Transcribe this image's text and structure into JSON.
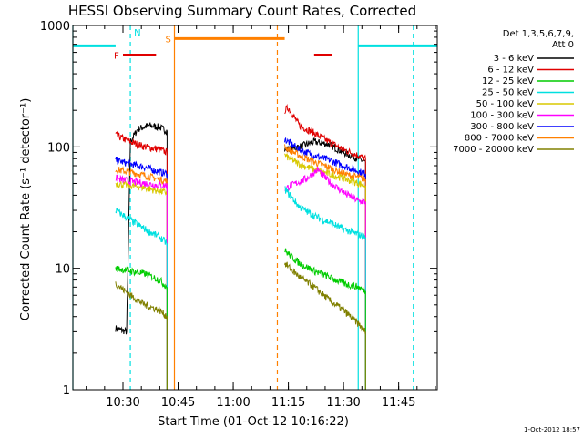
{
  "chart_data": {
    "type": "line",
    "title": "HESSI Observing Summary Count Rates, Corrected",
    "xlabel": "Start Time (01-Oct-12 10:16:22)",
    "ylabel": "Corrected Count Rate (s⁻¹ detector⁻¹)",
    "y_scale": "log",
    "ylim": [
      1,
      1000
    ],
    "xlim": [
      "10:16:22",
      "11:55:30"
    ],
    "x_ticks": [
      "10:30",
      "10:45",
      "11:00",
      "11:15",
      "11:30",
      "11:45"
    ],
    "y_ticks": [
      "1",
      "10",
      "100",
      "1000"
    ],
    "footer": "1-Oct-2012 18:57",
    "legend": {
      "placement": "right",
      "header": [
        "Det 1,3,5,6,7,9,",
        "Att 0"
      ],
      "entries": [
        {
          "label": "3 - 6 keV",
          "color": "#000000"
        },
        {
          "label": "6 - 12 keV",
          "color": "#e00000"
        },
        {
          "label": "12 - 25 keV",
          "color": "#00cc00"
        },
        {
          "label": "25 - 50 keV",
          "color": "#00e0e0"
        },
        {
          "label": "50 - 100 keV",
          "color": "#d8c800"
        },
        {
          "label": "100 - 300 keV",
          "color": "#ff00ff"
        },
        {
          "label": "300 - 800 keV",
          "color": "#0000ff"
        },
        {
          "label": "800 - 7000 keV",
          "color": "#ff8000"
        },
        {
          "label": "7000 - 20000 keV",
          "color": "#808000"
        }
      ]
    },
    "flag_bars": [
      {
        "label": "",
        "color": "#00e0e0",
        "start": "10:16:22",
        "end": "10:28",
        "y": 680
      },
      {
        "label": "",
        "color": "#00e0e0",
        "start": "11:34",
        "end": "11:55:30",
        "y": 680
      },
      {
        "label": "S",
        "color": "#ff8000",
        "start": "10:44",
        "end": "11:14",
        "y": 780
      },
      {
        "label": "F",
        "color": "#e00000",
        "start": "10:30",
        "end": "10:39",
        "y": 570
      },
      {
        "label": "",
        "color": "#e00000",
        "start": "11:22",
        "end": "11:27",
        "y": 570
      },
      {
        "label": "N",
        "color": "#00e0e0",
        "label_time": "10:33",
        "label_y": 830
      }
    ],
    "vertical_lines": [
      {
        "time": "10:16:22",
        "color": "#00e0e0",
        "style": "solid"
      },
      {
        "time": "10:32",
        "color": "#00e0e0",
        "style": "dashed"
      },
      {
        "time": "10:44",
        "color": "#ff8000",
        "style": "solid"
      },
      {
        "time": "11:12",
        "color": "#ff8000",
        "style": "dashed"
      },
      {
        "time": "11:34",
        "color": "#00e0e0",
        "style": "solid"
      },
      {
        "time": "11:49",
        "color": "#00e0e0",
        "style": "dashed"
      }
    ],
    "series": [
      {
        "color": "#000000",
        "segments": [
          {
            "x": [
              "10:28",
              "10:31",
              "10:32",
              "10:34",
              "10:37",
              "10:40",
              "10:42"
            ],
            "y": [
              3.2,
              3.0,
              110,
              140,
              150,
              145,
              135
            ]
          },
          {
            "x": [
              "11:14",
              "11:18",
              "11:22",
              "11:26",
              "11:30",
              "11:34",
              "11:36"
            ],
            "y": [
              95,
              100,
              110,
              105,
              90,
              80,
              75
            ]
          }
        ]
      },
      {
        "color": "#e00000",
        "segments": [
          {
            "x": [
              "10:28",
              "10:32",
              "10:36",
              "10:40",
              "10:42"
            ],
            "y": [
              125,
              110,
              100,
              95,
              90
            ]
          },
          {
            "x": [
              "11:14",
              "11:15",
              "11:18",
              "11:22",
              "11:26",
              "11:30",
              "11:34",
              "11:36"
            ],
            "y": [
              200,
              210,
              150,
              130,
              110,
              95,
              85,
              80
            ]
          }
        ]
      },
      {
        "color": "#0000ff",
        "segments": [
          {
            "x": [
              "10:28",
              "10:32",
              "10:36",
              "10:40",
              "10:42"
            ],
            "y": [
              78,
              72,
              68,
              62,
              60
            ]
          },
          {
            "x": [
              "11:14",
              "11:18",
              "11:22",
              "11:26",
              "11:30",
              "11:34",
              "11:36"
            ],
            "y": [
              115,
              95,
              85,
              78,
              70,
              63,
              60
            ]
          }
        ]
      },
      {
        "color": "#ff8000",
        "segments": [
          {
            "x": [
              "10:28",
              "10:32",
              "10:36",
              "10:40",
              "10:42"
            ],
            "y": [
              65,
              62,
              58,
              54,
              52
            ]
          },
          {
            "x": [
              "11:14",
              "11:18",
              "11:22",
              "11:26",
              "11:30",
              "11:34",
              "11:36"
            ],
            "y": [
              100,
              85,
              75,
              68,
              60,
              56,
              54
            ]
          }
        ]
      },
      {
        "color": "#d8c800",
        "segments": [
          {
            "x": [
              "10:28",
              "10:32",
              "10:36",
              "10:40",
              "10:42"
            ],
            "y": [
              50,
              48,
              46,
              43,
              42
            ]
          },
          {
            "x": [
              "11:14",
              "11:18",
              "11:22",
              "11:26",
              "11:30",
              "11:34",
              "11:36"
            ],
            "y": [
              85,
              72,
              65,
              60,
              55,
              50,
              48
            ]
          }
        ]
      },
      {
        "color": "#ff00ff",
        "segments": [
          {
            "x": [
              "10:28",
              "10:32",
              "10:36",
              "10:40",
              "10:42"
            ],
            "y": [
              55,
              52,
              50,
              48,
              48
            ]
          },
          {
            "x": [
              "11:14",
              "11:17",
              "11:20",
              "11:23",
              "11:26",
              "11:30",
              "11:34",
              "11:36"
            ],
            "y": [
              45,
              50,
              55,
              65,
              52,
              42,
              36,
              35
            ]
          }
        ]
      },
      {
        "color": "#00e0e0",
        "segments": [
          {
            "x": [
              "10:28",
              "10:32",
              "10:36",
              "10:40",
              "10:42"
            ],
            "y": [
              30,
              25,
              21,
              18,
              16
            ]
          },
          {
            "x": [
              "11:14",
              "11:18",
              "11:22",
              "11:26",
              "11:30",
              "11:34",
              "11:36"
            ],
            "y": [
              45,
              32,
              27,
              24,
              21,
              19,
              18
            ]
          }
        ]
      },
      {
        "color": "#00cc00",
        "segments": [
          {
            "x": [
              "10:28",
              "10:32",
              "10:36",
              "10:40",
              "10:42"
            ],
            "y": [
              10,
              9.5,
              9,
              8,
              7
            ]
          },
          {
            "x": [
              "11:14",
              "11:18",
              "11:22",
              "11:26",
              "11:30",
              "11:34",
              "11:36"
            ],
            "y": [
              14,
              11,
              9.5,
              8.5,
              7.5,
              7,
              6.5
            ]
          }
        ]
      },
      {
        "color": "#808000",
        "segments": [
          {
            "x": [
              "10:28",
              "10:32",
              "10:36",
              "10:40",
              "10:42"
            ],
            "y": [
              7.5,
              6,
              5,
              4.5,
              4
            ]
          },
          {
            "x": [
              "11:14",
              "11:18",
              "11:22",
              "11:26",
              "11:30",
              "11:34",
              "11:36"
            ],
            "y": [
              11,
              8.5,
              7,
              5.5,
              4.5,
              3.5,
              3.0
            ]
          }
        ]
      }
    ]
  }
}
